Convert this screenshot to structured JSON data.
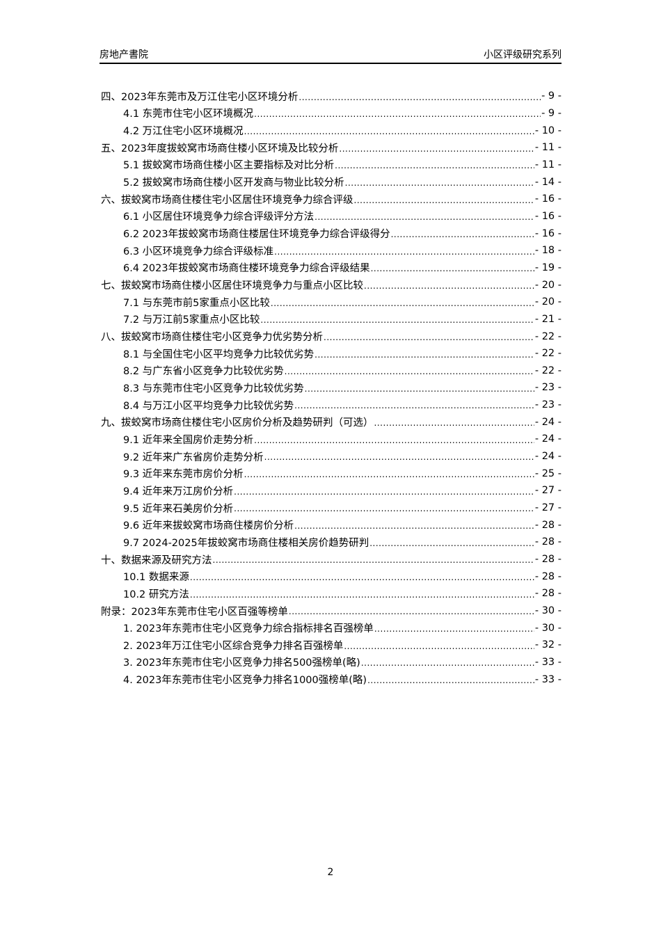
{
  "header": {
    "left": "房地产書院",
    "right": "小区评级研究系列"
  },
  "toc": [
    {
      "level": 1,
      "title": "四、2023年东莞市及万江住宅小区环境分析",
      "page": "- 9 -"
    },
    {
      "level": 2,
      "title": "4.1 东莞市住宅小区环境概况",
      "page": "- 9 -"
    },
    {
      "level": 2,
      "title": "4.2 万江住宅小区环境概况",
      "page": "- 10 -"
    },
    {
      "level": 1,
      "title": "五、2023年度拔蛟窝市场商住楼小区环境及比较分析",
      "page": "- 11 -"
    },
    {
      "level": 2,
      "title": "5.1 拔蛟窝市场商住楼小区主要指标及对比分析",
      "page": "- 11 -"
    },
    {
      "level": 2,
      "title": "5.2 拔蛟窝市场商住楼小区开发商与物业比较分析",
      "page": "- 14 -"
    },
    {
      "level": 1,
      "title": "六、拔蛟窝市场商住楼住宅小区居住环境竞争力综合评级",
      "page": "- 16 -"
    },
    {
      "level": 2,
      "title": "6.1 小区居住环境竞争力综合评级评分方法",
      "page": "- 16 -"
    },
    {
      "level": 2,
      "title": "6.2 2023年拔蛟窝市场商住楼居住环境竞争力综合评级得分",
      "page": "- 16 -"
    },
    {
      "level": 2,
      "title": "6.3 小区环境竞争力综合评级标准",
      "page": "- 18 -"
    },
    {
      "level": 2,
      "title": "6.4 2023年拔蛟窝市场商住楼环境竞争力综合评级结果",
      "page": "- 19 -"
    },
    {
      "level": 1,
      "title": "七、拔蛟窝市场商住楼小区居住环境竞争力与重点小区比较",
      "page": "- 20 -"
    },
    {
      "level": 2,
      "title": "7.1 与东莞市前5家重点小区比较",
      "page": "- 20 -"
    },
    {
      "level": 2,
      "title": "7.2 与万江前5家重点小区比较",
      "page": "- 21 -"
    },
    {
      "level": 1,
      "title": "八、拔蛟窝市场商住楼住宅小区竞争力优劣势分析",
      "page": "- 22 -"
    },
    {
      "level": 2,
      "title": "8.1 与全国住宅小区平均竞争力比较优劣势",
      "page": "- 22 -"
    },
    {
      "level": 2,
      "title": "8.2 与广东省小区竞争力比较优劣势",
      "page": "- 22 -"
    },
    {
      "level": 2,
      "title": "8.3 与东莞市住宅小区竞争力比较优劣势",
      "page": "- 23 -"
    },
    {
      "level": 2,
      "title": "8.4 与万江小区平均竞争力比较优劣势",
      "page": "- 23 -"
    },
    {
      "level": 1,
      "title": "九、拔蛟窝市场商住楼住宅小区房价分析及趋势研判（可选）",
      "page": "- 24 -"
    },
    {
      "level": 2,
      "title": "9.1 近年来全国房价走势分析",
      "page": "- 24 -"
    },
    {
      "level": 2,
      "title": "9.2 近年来广东省房价走势分析",
      "page": "- 24 -"
    },
    {
      "level": 2,
      "title": "9.3 近年来东莞市房价分析",
      "page": "- 25 -"
    },
    {
      "level": 2,
      "title": "9.4 近年来万江房价分析",
      "page": "- 27 -"
    },
    {
      "level": 2,
      "title": "9.5 近年来石美房价分析",
      "page": "- 27 -"
    },
    {
      "level": 2,
      "title": "9.6 近年来拔蛟窝市场商住楼房价分析",
      "page": "- 28 -"
    },
    {
      "level": 2,
      "title": "9.7 2024-2025年拔蛟窝市场商住楼相关房价趋势研判",
      "page": "- 28 -"
    },
    {
      "level": 1,
      "title": "十、数据来源及研究方法",
      "page": "- 28 -"
    },
    {
      "level": 2,
      "title": "10.1 数据来源",
      "page": "- 28 -"
    },
    {
      "level": 2,
      "title": "10.2 研究方法",
      "page": "- 28 -"
    },
    {
      "level": 1,
      "title": "附录：2023年东莞市住宅小区百强等榜单",
      "page": "- 30 -"
    },
    {
      "level": 2,
      "title": "1. 2023年东莞市住宅小区竞争力综合指标排名百强榜单",
      "page": "- 30 -"
    },
    {
      "level": 2,
      "title": "2. 2023年万江住宅小区综合竞争力排名百强榜单",
      "page": "- 32 -"
    },
    {
      "level": 2,
      "title": "3. 2023年东莞市住宅小区竞争力排名500强榜单(略)",
      "page": "- 33 -"
    },
    {
      "level": 2,
      "title": "4. 2023年东莞市住宅小区竞争力排名1000强榜单(略)",
      "page": "- 33 -"
    }
  ],
  "footer": {
    "page_number": "2"
  }
}
